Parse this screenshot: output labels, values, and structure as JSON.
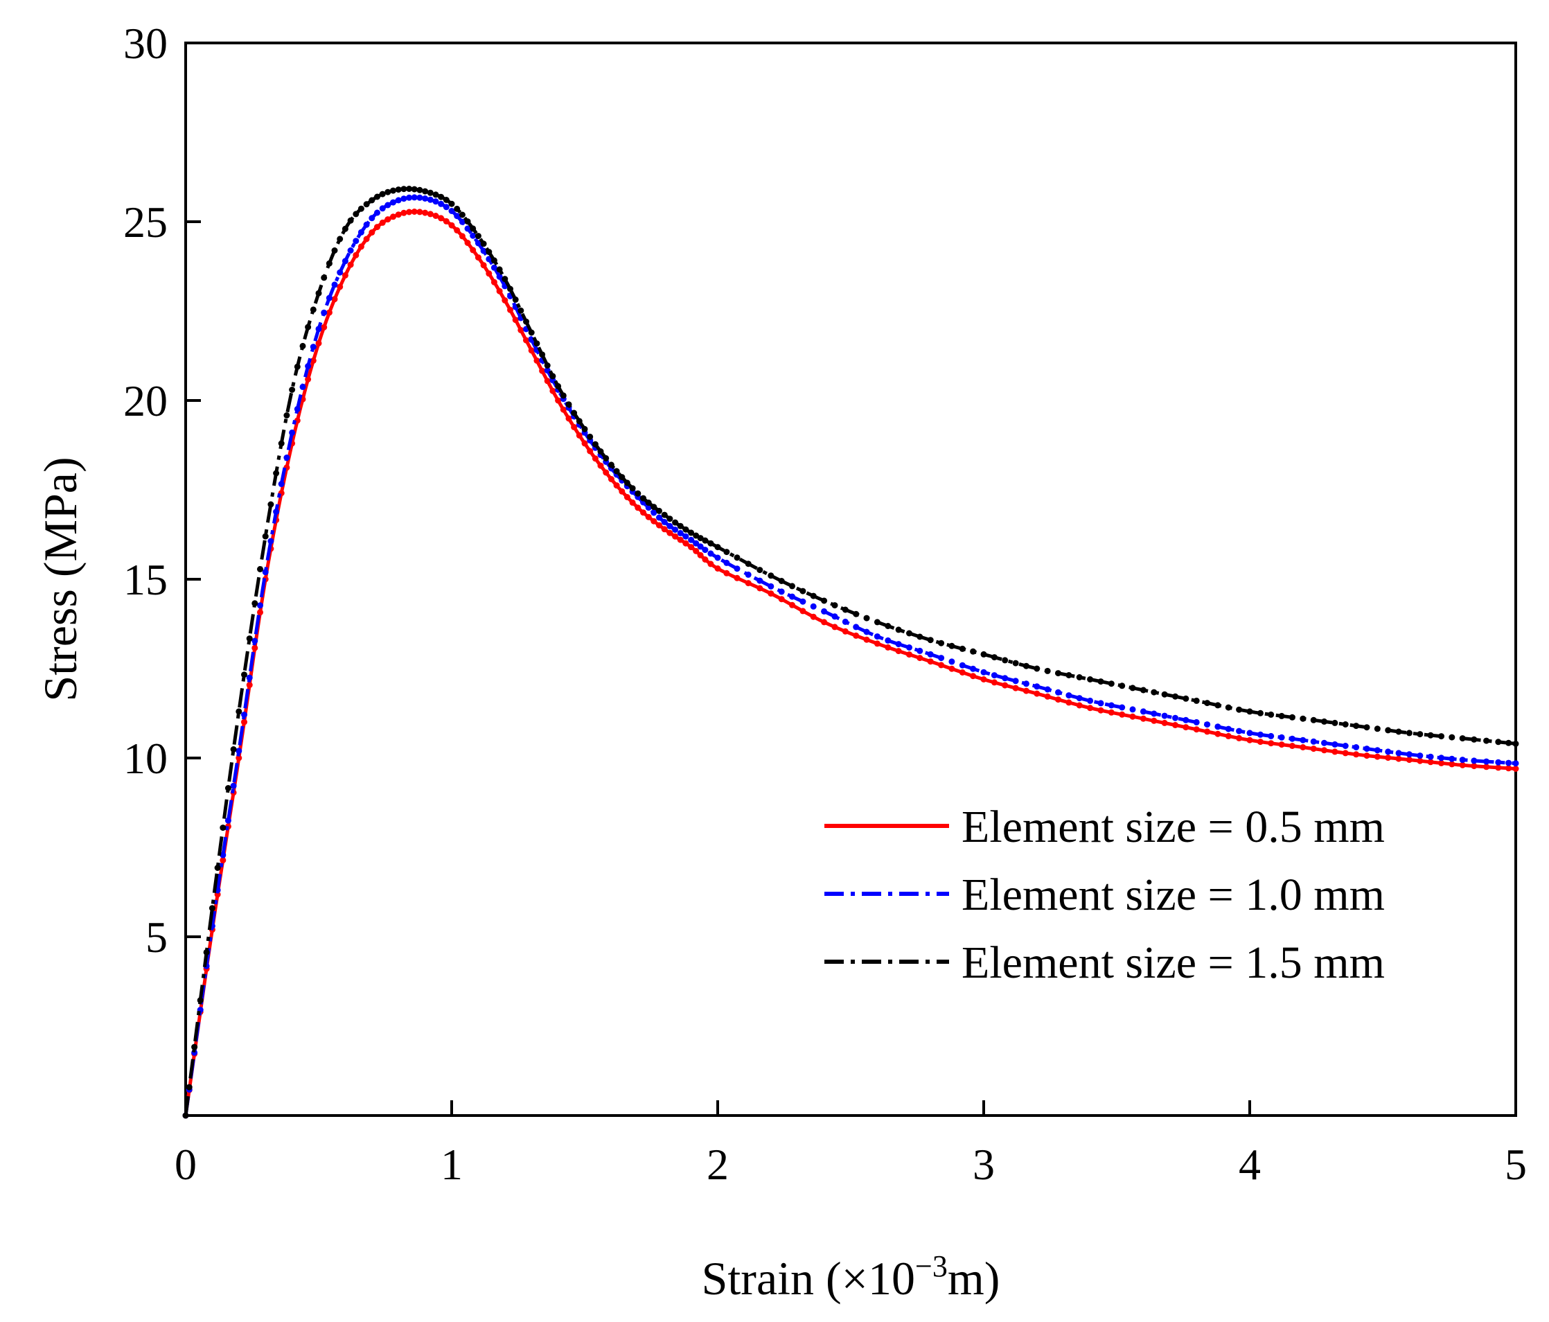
{
  "chart_data": {
    "type": "line",
    "title": "",
    "xlabel": "Strain (×10",
    "xlabel_sup": "−3",
    "xlabel_tail": "m)",
    "ylabel": "Stress (MPa)",
    "xlim": [
      0,
      5
    ],
    "ylim": [
      0,
      30
    ],
    "xticks": [
      0,
      1,
      2,
      3,
      4,
      5
    ],
    "xtick_labels": [
      "0",
      "1",
      "2",
      "3",
      "4",
      "5"
    ],
    "yticks": [
      5,
      10,
      15,
      20,
      25,
      30
    ],
    "ytick_labels": [
      "5",
      "10",
      "15",
      "20",
      "25",
      "30"
    ],
    "grid": false,
    "legend_position": "bottom-right",
    "x": [
      0,
      0.1,
      0.2,
      0.3,
      0.4,
      0.5,
      0.6,
      0.7,
      0.8,
      0.9,
      1.0,
      1.1,
      1.2,
      1.3,
      1.4,
      1.5,
      1.6,
      1.7,
      1.8,
      1.9,
      2.0,
      2.2,
      2.4,
      2.6,
      2.8,
      3.0,
      3.2,
      3.4,
      3.6,
      3.8,
      4.0,
      4.2,
      4.4,
      4.6,
      4.8,
      5.0
    ],
    "series": [
      {
        "name": "Element size = 0.5 mm",
        "color": "#ff0000",
        "style": "solid",
        "values": [
          0,
          5.2,
          10.0,
          15.0,
          18.8,
          21.6,
          23.5,
          24.7,
          25.2,
          25.25,
          24.9,
          24.0,
          22.8,
          21.4,
          20.0,
          18.8,
          17.8,
          17.0,
          16.4,
          15.9,
          15.3,
          14.6,
          13.8,
          13.2,
          12.7,
          12.2,
          11.8,
          11.4,
          11.1,
          10.8,
          10.5,
          10.3,
          10.1,
          9.95,
          9.8,
          9.7
        ]
      },
      {
        "name": "Element size = 1.0 mm",
        "color": "#0000ff",
        "style": "dashdot",
        "values": [
          0,
          5.3,
          10.2,
          15.2,
          19.1,
          22.0,
          23.9,
          25.1,
          25.6,
          25.65,
          25.3,
          24.4,
          23.2,
          21.7,
          20.3,
          19.1,
          18.1,
          17.3,
          16.6,
          16.1,
          15.6,
          14.8,
          14.1,
          13.4,
          12.9,
          12.4,
          12.0,
          11.6,
          11.3,
          11.0,
          10.7,
          10.5,
          10.3,
          10.1,
          9.95,
          9.85
        ]
      },
      {
        "name": "Element size = 1.5 mm",
        "color": "#000000",
        "style": "dashdot",
        "values": [
          0,
          5.8,
          11.3,
          16.2,
          20.3,
          23.0,
          24.8,
          25.6,
          25.9,
          25.85,
          25.5,
          24.6,
          23.4,
          21.9,
          20.4,
          19.2,
          18.2,
          17.4,
          16.8,
          16.3,
          15.9,
          15.1,
          14.4,
          13.8,
          13.3,
          12.9,
          12.5,
          12.2,
          11.9,
          11.6,
          11.3,
          11.1,
          10.9,
          10.7,
          10.55,
          10.4
        ]
      }
    ]
  }
}
